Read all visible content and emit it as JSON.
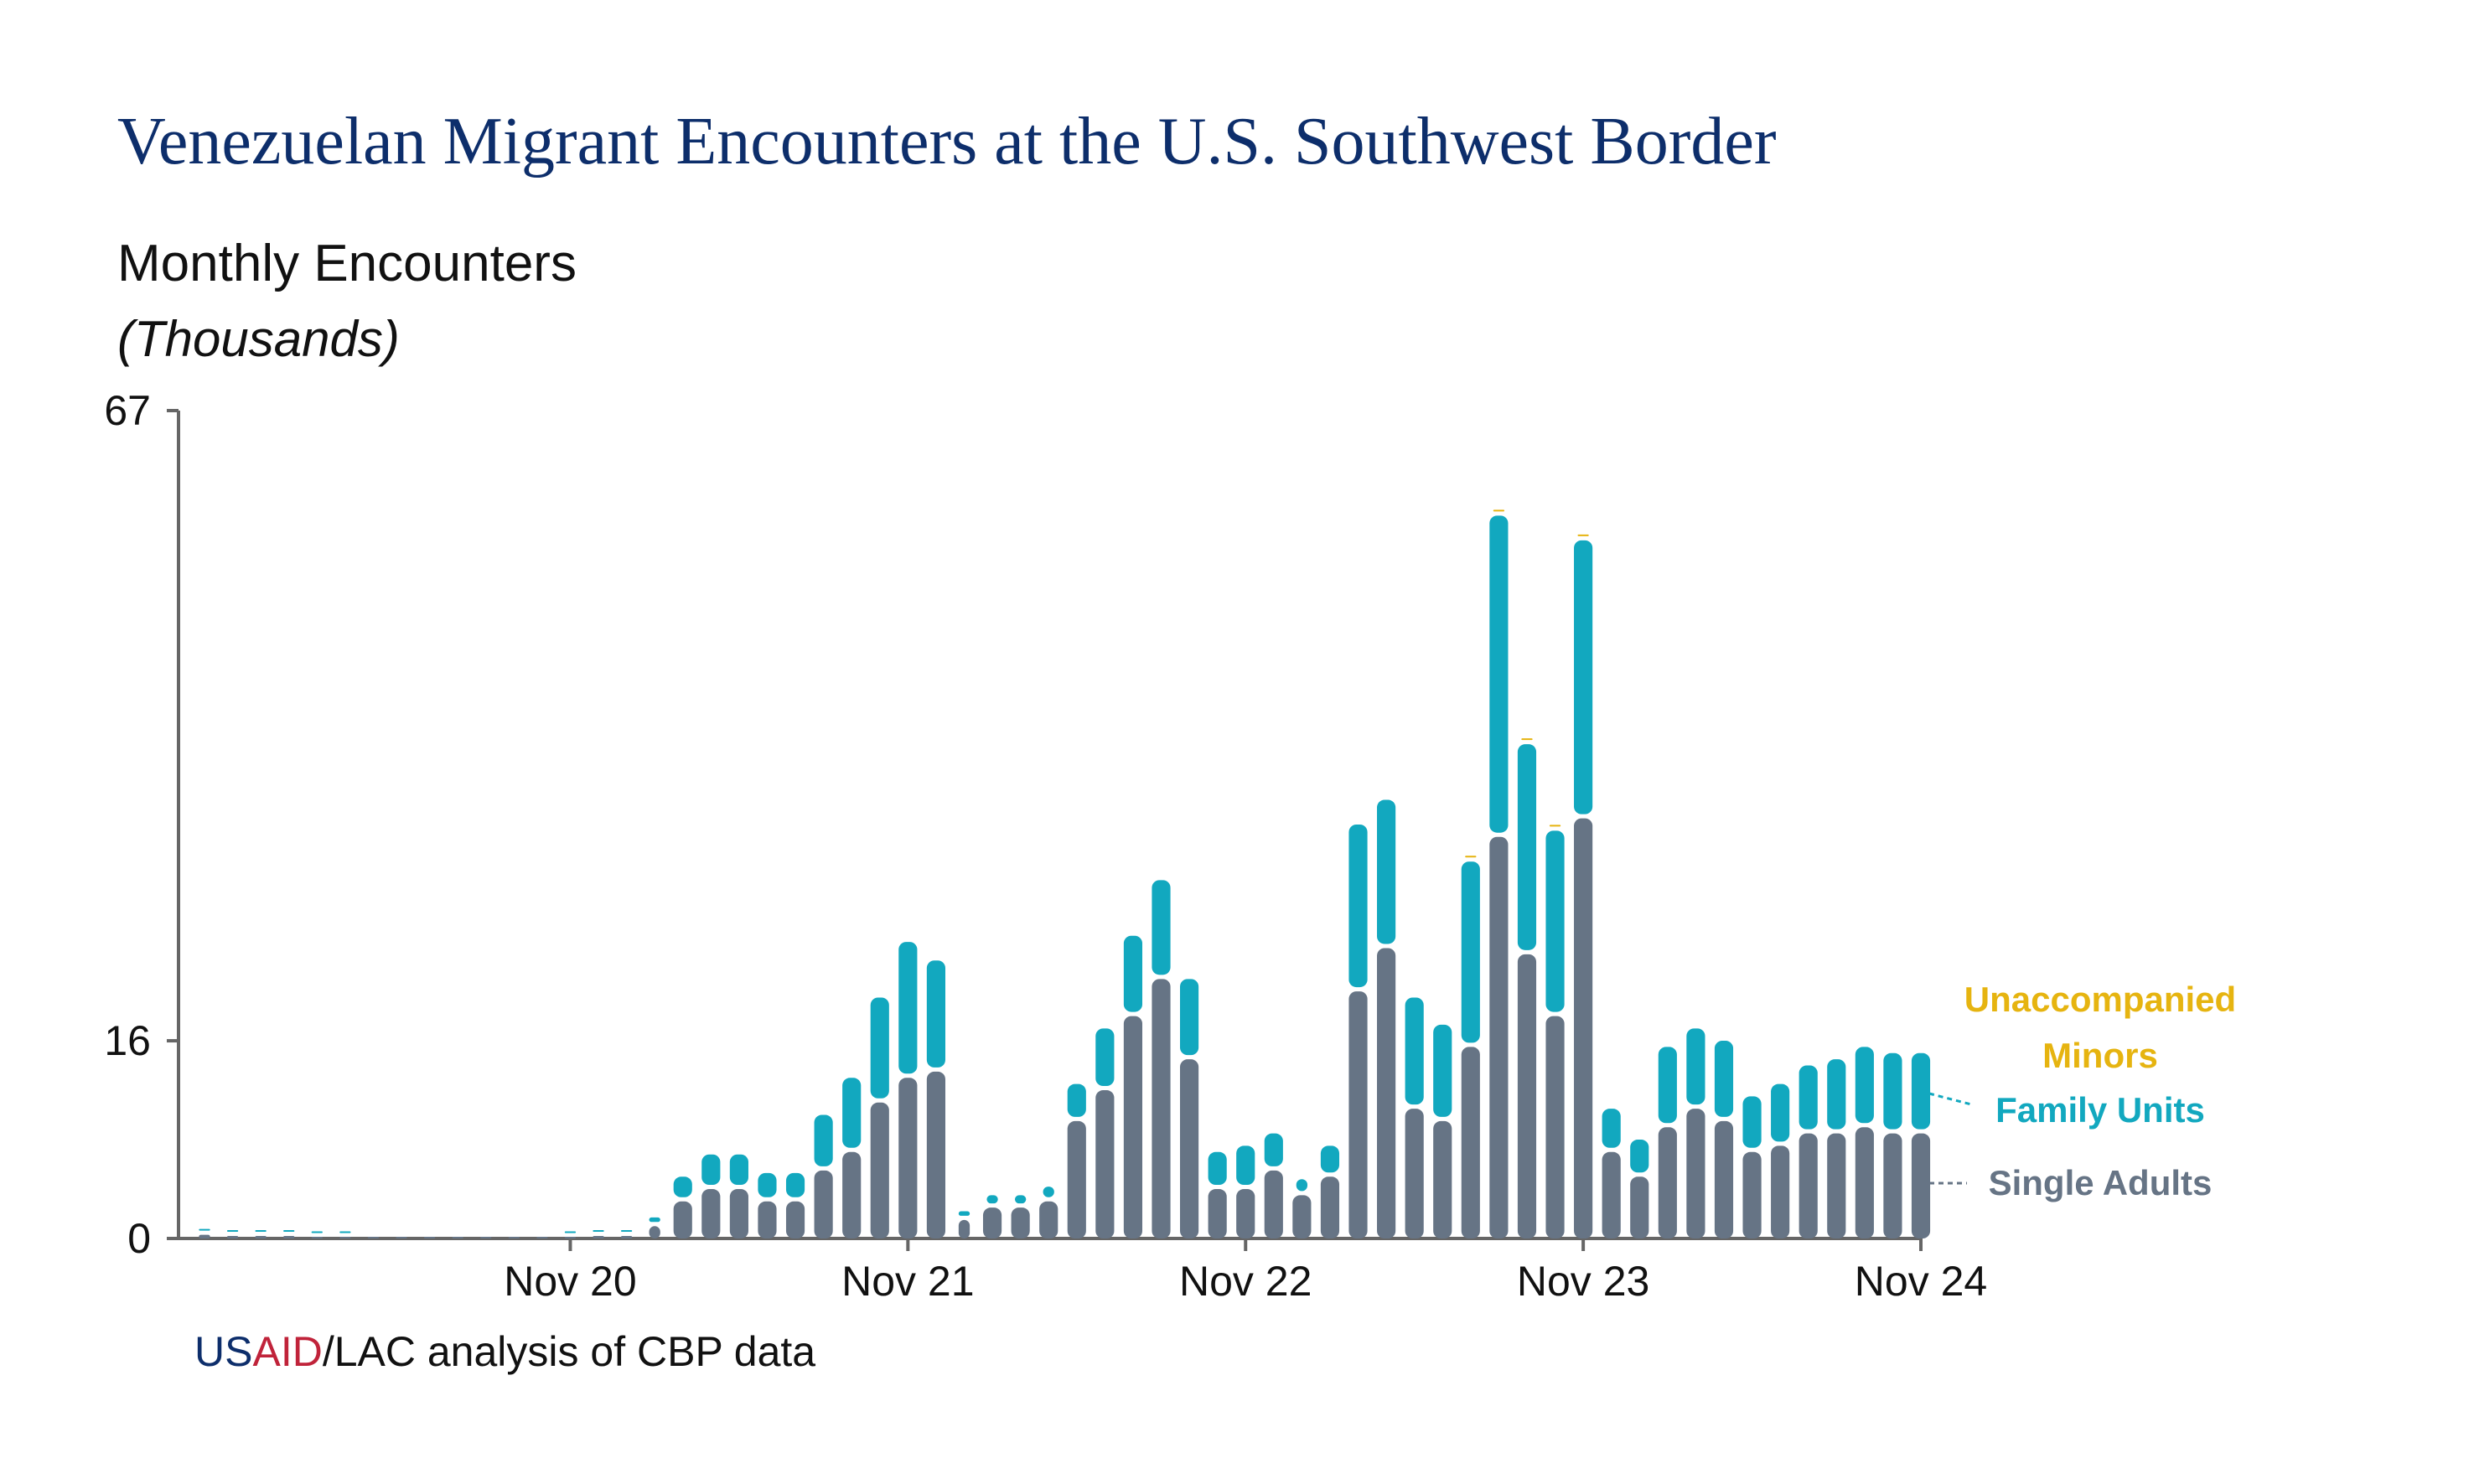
{
  "title": "Venezuelan Migrant Encounters at the U.S. Southwest Border",
  "subtitle": "Monthly Encounters",
  "units": "(Thousands)",
  "source": {
    "us": "US",
    "aid": "AID",
    "rest": "/LAC analysis of CBP data"
  },
  "colors": {
    "single_adults": "#667485",
    "family_units": "#12a8bf",
    "unaccompanied_minors": "#e6b410",
    "title": "#0d2e6b",
    "source_us": "#0d2e6b",
    "source_aid": "#c0233a",
    "axis": "#666666"
  },
  "chart_data": {
    "type": "bar",
    "stacked": true,
    "ylim": [
      0,
      67
    ],
    "y_ticks": [
      0,
      16,
      67
    ],
    "y_tick_labels": [
      "0",
      "16",
      "67"
    ],
    "x_ticks": [
      "Nov 20",
      "Nov 21",
      "Nov 22",
      "Nov 23",
      "Nov 24"
    ],
    "x_tick_months": [
      "2020-11",
      "2021-11",
      "2022-11",
      "2023-11",
      "2024-11"
    ],
    "categories": [
      "2019-10",
      "2019-11",
      "2019-12",
      "2020-01",
      "2020-02",
      "2020-03",
      "2020-04",
      "2020-05",
      "2020-06",
      "2020-07",
      "2020-08",
      "2020-09",
      "2020-10",
      "2020-11",
      "2020-12",
      "2021-01",
      "2021-02",
      "2021-03",
      "2021-04",
      "2021-05",
      "2021-06",
      "2021-07",
      "2021-08",
      "2021-09",
      "2021-10",
      "2021-11",
      "2021-12",
      "2022-01",
      "2022-02",
      "2022-03",
      "2022-04",
      "2022-05",
      "2022-06",
      "2022-07",
      "2022-08",
      "2022-09",
      "2022-10",
      "2022-11",
      "2022-12",
      "2023-01",
      "2023-02",
      "2023-03",
      "2023-04",
      "2023-05",
      "2023-06",
      "2023-07",
      "2023-08",
      "2023-09",
      "2023-10",
      "2023-11",
      "2023-12",
      "2024-01",
      "2024-02",
      "2024-03",
      "2024-04",
      "2024-05",
      "2024-06",
      "2024-07",
      "2024-08",
      "2024-09",
      "2024-10",
      "2024-11"
    ],
    "series": [
      {
        "name": "Single Adults",
        "values": [
          0.3,
          0.2,
          0.2,
          0.2,
          0.1,
          0.1,
          0.05,
          0.05,
          0.05,
          0.05,
          0.05,
          0.05,
          0.05,
          0.1,
          0.2,
          0.2,
          1.0,
          3.0,
          4.0,
          4.0,
          3.0,
          3.0,
          5.5,
          7.0,
          11.0,
          13.0,
          13.5,
          1.5,
          2.5,
          2.5,
          3.0,
          9.5,
          12.0,
          18.0,
          21.0,
          14.5,
          4.0,
          4.0,
          5.5,
          3.5,
          5.0,
          20.0,
          23.5,
          10.5,
          9.5,
          15.5,
          32.5,
          23.0,
          18.0,
          34.0,
          7.0,
          5.0,
          9.0,
          10.5,
          9.5,
          7.0,
          7.5,
          8.5,
          8.5,
          9.0,
          8.5,
          8.5
        ]
      },
      {
        "name": "Family Units",
        "values": [
          0.1,
          0.1,
          0.1,
          0.1,
          0.05,
          0.05,
          0.0,
          0.0,
          0.0,
          0.0,
          0.0,
          0.0,
          0.0,
          0.05,
          0.1,
          0.2,
          0.7,
          2.0,
          2.8,
          2.8,
          2.3,
          2.3,
          4.5,
          6.0,
          8.5,
          11.0,
          9.0,
          0.7,
          1.0,
          1.0,
          1.2,
          3.0,
          5.0,
          6.5,
          8.0,
          6.5,
          3.0,
          3.5,
          3.0,
          1.3,
          2.5,
          13.5,
          12.0,
          9.0,
          7.8,
          15.0,
          26.0,
          17.0,
          15.0,
          22.5,
          3.5,
          3.0,
          6.5,
          6.5,
          6.5,
          4.5,
          5.0,
          5.5,
          6.0,
          6.5,
          6.5,
          6.5
        ]
      },
      {
        "name": "Unaccompanied Minors",
        "values": [
          0.0,
          0.0,
          0.0,
          0.0,
          0.0,
          0.0,
          0.0,
          0.0,
          0.0,
          0.0,
          0.0,
          0.0,
          0.0,
          0.0,
          0.0,
          0.0,
          0.0,
          0.0,
          0.0,
          0.0,
          0.0,
          0.0,
          0.0,
          0.0,
          0.0,
          0.0,
          0.0,
          0.0,
          0.0,
          0.0,
          0.0,
          0.0,
          0.0,
          0.0,
          0.0,
          0.0,
          0.0,
          0.0,
          0.0,
          0.0,
          0.0,
          0.0,
          0.0,
          0.0,
          0.0,
          0.3,
          0.3,
          0.3,
          0.3,
          0.3,
          0.0,
          0.0,
          0.0,
          0.0,
          0.0,
          0.0,
          0.0,
          0.0,
          0.0,
          0.0,
          0.0,
          0.0
        ]
      }
    ],
    "legend": {
      "placement": "right",
      "unaccompanied_minors_line1": "Unaccompanied",
      "unaccompanied_minors_line2": "Minors",
      "family_units": "Family Units",
      "single_adults": "Single Adults"
    }
  }
}
